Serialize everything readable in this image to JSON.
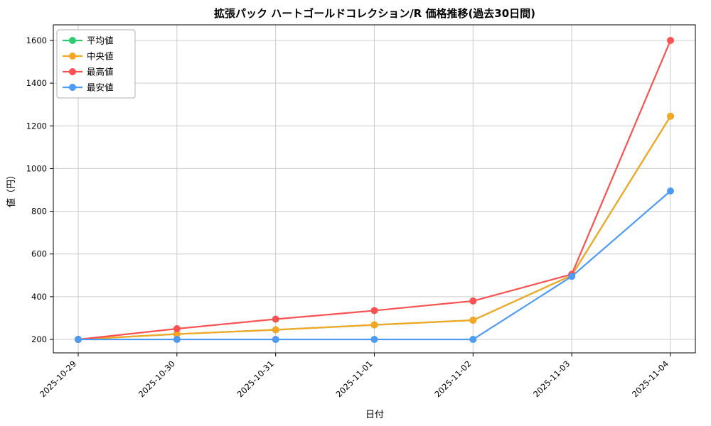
{
  "chart_data": {
    "type": "line",
    "title": "拡張パック ハートゴールドコレクション/R 価格推移(過去30日間)",
    "xlabel": "日付",
    "ylabel": "値（円）",
    "x": [
      "2025-10-29",
      "2025-10-30",
      "2025-10-31",
      "2025-11-01",
      "2025-11-02",
      "2025-11-03",
      "2025-11-04"
    ],
    "series": [
      {
        "name": "平均値",
        "color": "#2ecc71",
        "values": [
          200,
          225,
          245,
          268,
          290,
          500,
          1245
        ]
      },
      {
        "name": "中央値",
        "color": "#f5a623",
        "values": [
          200,
          225,
          245,
          268,
          290,
          500,
          1245
        ]
      },
      {
        "name": "最高値",
        "color": "#fa5252",
        "values": [
          200,
          250,
          295,
          335,
          380,
          505,
          1600
        ]
      },
      {
        "name": "最安値",
        "color": "#4d9bf5",
        "values": [
          200,
          200,
          200,
          200,
          200,
          495,
          895
        ]
      }
    ],
    "yticks": [
      200,
      400,
      600,
      800,
      1000,
      1200,
      1400,
      1600
    ],
    "ylim": [
      137,
      1673
    ],
    "grid": true,
    "grid_color": "#cccccc",
    "axes_edge_color": "#000000",
    "legend_position": "upper left"
  }
}
